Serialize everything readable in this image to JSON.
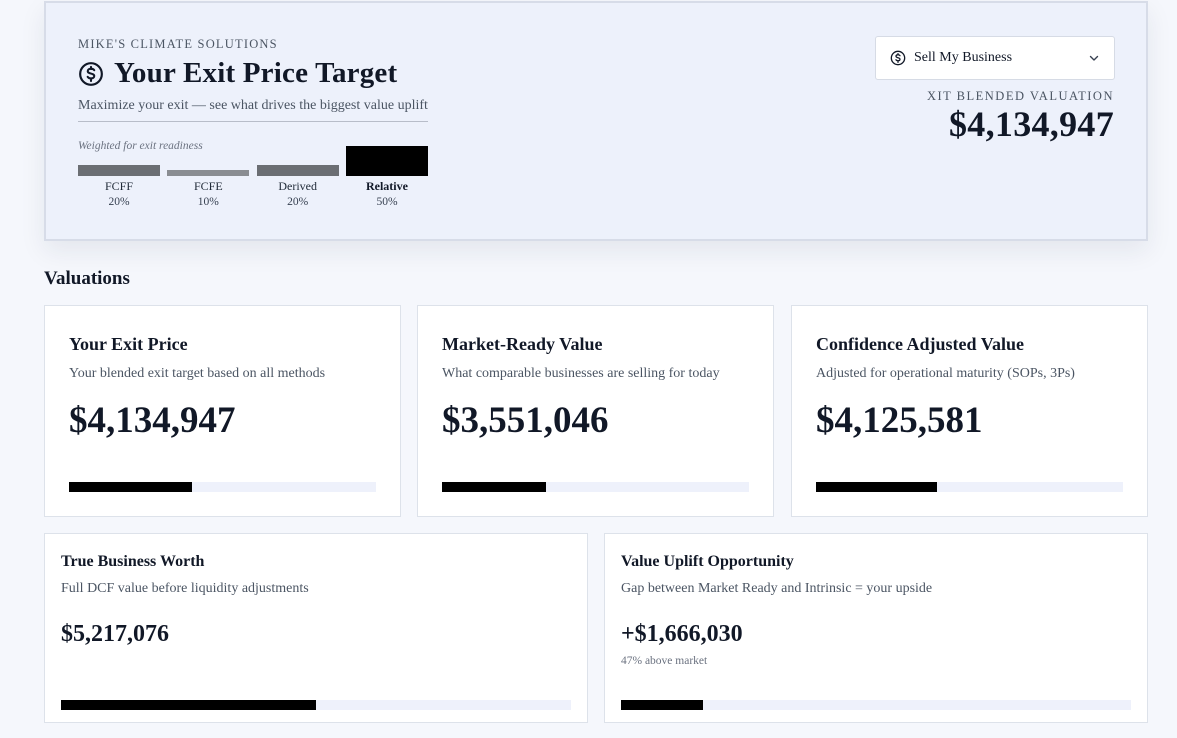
{
  "hero": {
    "company": "MIKE'S CLIMATE SOLUTIONS",
    "title": "Your Exit Price Target",
    "subtitle": "Maximize your exit — see what drives the biggest value uplift",
    "weights_caption": "Weighted for exit readiness",
    "weights": [
      {
        "name": "FCFF",
        "pct_label": "20%",
        "weight": 0.2,
        "active": false
      },
      {
        "name": "FCFE",
        "pct_label": "10%",
        "weight": 0.1,
        "active": false
      },
      {
        "name": "Derived",
        "pct_label": "20%",
        "weight": 0.2,
        "active": false
      },
      {
        "name": "Relative",
        "pct_label": "50%",
        "weight": 0.5,
        "active": true
      }
    ],
    "select_value": "Sell My Business",
    "blended_label": "XIT BLENDED VALUATION",
    "blended_value": "$4,134,947"
  },
  "section_title": "Valuations",
  "cards": [
    {
      "title": "Your Exit Price",
      "desc": "Your blended exit target based on all methods",
      "value": "$4,134,947",
      "progress": 0.4
    },
    {
      "title": "Market-Ready Value",
      "desc": "What comparable businesses are selling for today",
      "value": "$3,551,046",
      "progress": 0.34
    },
    {
      "title": "Confidence Adjusted Value",
      "desc": "Adjusted for operational maturity (SOPs, 3Ps)",
      "value": "$4,125,581",
      "progress": 0.395
    },
    {
      "title": "True Business Worth",
      "desc": "Full DCF value before liquidity adjustments",
      "value": "$5,217,076",
      "note": "",
      "progress": 0.5
    },
    {
      "title": "Value Uplift Opportunity",
      "desc": "Gap between Market Ready and Intrinsic = your upside",
      "value": "+$1,666,030",
      "note": "47% above market",
      "progress": 0.16
    }
  ],
  "colors": {
    "hero_bg": "#edf1fb",
    "page_bg": "#f5f7fc",
    "bar_active": "#000000",
    "bar_inactive": "#6b6e73",
    "track": "#eef1fb"
  },
  "icons": {
    "title_icon": "dollar-circle-icon",
    "select_icon": "dollar-circle-icon",
    "select_chevron": "chevron-down-icon"
  }
}
